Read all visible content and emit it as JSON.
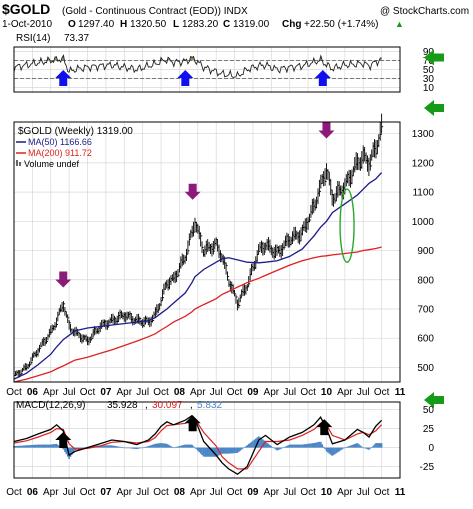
{
  "header": {
    "symbol": "$GOLD",
    "description": "(Gold - Continuous Contract (EOD)) INDX",
    "source": "@ StockCharts.com",
    "date": "1-Oct-2010",
    "open_label": "O",
    "open": "1297.40",
    "high_label": "H",
    "high": "1320.50",
    "low_label": "L",
    "low": "1283.20",
    "close_label": "C",
    "close": "1319.00",
    "chg_label": "Chg",
    "chg": "+22.50 (+1.74%)",
    "chg_arrow": "▲"
  },
  "rsi": {
    "label": "RSI(14)",
    "value": "73.37",
    "ticks": [
      "90",
      "70",
      "50",
      "30",
      "10"
    ],
    "tick_values": [
      90,
      70,
      50,
      30,
      10
    ],
    "range": [
      0,
      100
    ],
    "overbought": 70,
    "oversold": 30
  },
  "price": {
    "legend_title": "$GOLD (Weekly) 1319.00",
    "legend_ma50": "MA(50) 1166.66",
    "legend_ma200": "MA(200) 911.72",
    "legend_volume": "Volume undef",
    "ticks": [
      "1300",
      "1200",
      "1100",
      "1000",
      "900",
      "800",
      "700",
      "600",
      "500"
    ],
    "tick_values": [
      1300,
      1200,
      1100,
      1000,
      900,
      800,
      700,
      600,
      500
    ],
    "range": [
      450,
      1340
    ]
  },
  "macd": {
    "label": "MACD(12,26,9)",
    "macd_value": "35.928",
    "signal_value": "30.097",
    "hist_value": "5.832",
    "ticks": [
      "50",
      "25",
      "0",
      "-25"
    ],
    "tick_values": [
      50,
      25,
      0,
      -25
    ],
    "range": [
      -40,
      60
    ]
  },
  "x_axis": {
    "labels": [
      "Oct",
      "06",
      "Apr",
      "Jul",
      "Oct",
      "07",
      "Apr",
      "Jul",
      "Oct",
      "08",
      "Apr",
      "Jul",
      "Oct",
      "09",
      "Apr",
      "Jul",
      "Oct",
      "10",
      "Apr",
      "Jul",
      "Oct",
      "11"
    ],
    "label_years": [
      2005.75,
      2006.0,
      2006.25,
      2006.5,
      2006.75,
      2007.0,
      2007.25,
      2007.5,
      2007.75,
      2008.0,
      2008.25,
      2008.5,
      2008.75,
      2009.0,
      2009.25,
      2009.5,
      2009.75,
      2010.0,
      2010.25,
      2010.5,
      2010.75,
      2011.0
    ],
    "bold": [
      false,
      true,
      false,
      false,
      false,
      true,
      false,
      false,
      false,
      true,
      false,
      false,
      false,
      true,
      false,
      false,
      false,
      true,
      false,
      false,
      false,
      true
    ],
    "range": [
      2005.75,
      2011.0
    ]
  },
  "colors": {
    "price_bars": "#000000",
    "ma50": "#1c1c8a",
    "ma200": "#e02020",
    "rsi_line": "#222222",
    "rsi_fill": "#7aa05a",
    "macd_line": "#000000",
    "signal_line": "#e02020",
    "histogram": "#4a86c8",
    "grid": "#d8d8d8",
    "purple_arrow": "#8b1a7a",
    "blue_arrow": "#1010ee",
    "black_arrow": "#000000",
    "green_arrow": "#179a17",
    "green_ellipse": "#28a828"
  },
  "annotations": {
    "purple_arrows": [
      {
        "year": 2006.42,
        "price": 760
      },
      {
        "year": 2008.18,
        "price": 1060
      },
      {
        "year": 2010.0,
        "price": 1270
      }
    ],
    "blue_arrows": [
      {
        "year": 2006.42
      },
      {
        "year": 2008.08
      },
      {
        "year": 2009.95
      }
    ],
    "black_arrows": [
      {
        "year": 2006.42,
        "macd": 10
      },
      {
        "year": 2008.18,
        "macd": 32
      },
      {
        "year": 2009.97,
        "macd": 27
      }
    ],
    "green_arrows": [
      {
        "pane": "rsi",
        "value": 70
      },
      {
        "pane": "price",
        "value": 1340
      },
      {
        "pane": "macd",
        "value": 60
      }
    ],
    "ellipse": {
      "year": 2010.28,
      "price_top": 1110,
      "price_bottom": 860
    }
  },
  "chart_data": {
    "type": "line",
    "title": "$GOLD (Gold - Continuous Contract (EOD)) INDX",
    "xlabel": "",
    "ylabel": "",
    "ylim": [
      450,
      1340
    ],
    "grid": true,
    "legend_placement": "top-left",
    "x": [
      2005.75,
      2005.92,
      2006.08,
      2006.25,
      2006.33,
      2006.42,
      2006.5,
      2006.58,
      2006.75,
      2006.92,
      2007.08,
      2007.25,
      2007.42,
      2007.58,
      2007.67,
      2007.75,
      2007.83,
      2007.92,
      2008.08,
      2008.17,
      2008.21,
      2008.33,
      2008.5,
      2008.58,
      2008.67,
      2008.79,
      2008.92,
      2009.08,
      2009.17,
      2009.33,
      2009.5,
      2009.67,
      2009.83,
      2009.92,
      2010.0,
      2010.08,
      2010.25,
      2010.42,
      2010.5,
      2010.58,
      2010.67,
      2010.75
    ],
    "series": [
      {
        "name": "$GOLD (Weekly)",
        "values": [
          470,
          500,
          560,
          620,
          660,
          720,
          640,
          620,
          590,
          640,
          660,
          680,
          660,
          655,
          680,
          730,
          790,
          800,
          880,
          960,
          1000,
          900,
          920,
          880,
          800,
          720,
          780,
          900,
          920,
          890,
          940,
          960,
          1050,
          1120,
          1180,
          1080,
          1120,
          1200,
          1220,
          1200,
          1250,
          1319
        ]
      },
      {
        "name": "MA(50)",
        "values": [
          460,
          480,
          510,
          545,
          570,
          595,
          610,
          625,
          635,
          640,
          645,
          650,
          655,
          660,
          670,
          685,
          700,
          720,
          755,
          790,
          810,
          835,
          860,
          872,
          875,
          868,
          860,
          858,
          860,
          865,
          880,
          905,
          950,
          980,
          1000,
          1030,
          1060,
          1090,
          1110,
          1130,
          1145,
          1166.66
        ]
      },
      {
        "name": "MA(200)",
        "values": [
          450,
          460,
          472,
          485,
          495,
          505,
          515,
          525,
          535,
          548,
          560,
          575,
          590,
          605,
          615,
          628,
          640,
          655,
          675,
          690,
          700,
          715,
          735,
          750,
          760,
          775,
          790,
          805,
          815,
          832,
          850,
          865,
          875,
          880,
          882,
          885,
          890,
          895,
          900,
          903,
          907,
          911.72
        ]
      }
    ],
    "rsi_values": [
      55,
      60,
      65,
      70,
      72,
      74,
      45,
      50,
      55,
      58,
      60,
      55,
      50,
      58,
      62,
      68,
      72,
      66,
      68,
      75,
      72,
      55,
      45,
      40,
      38,
      35,
      50,
      58,
      60,
      50,
      55,
      58,
      66,
      72,
      60,
      52,
      60,
      62,
      64,
      58,
      66,
      73.37
    ],
    "macd_values": [
      8,
      12,
      18,
      24,
      30,
      22,
      -10,
      -5,
      0,
      5,
      10,
      8,
      4,
      10,
      18,
      28,
      34,
      30,
      36,
      42,
      38,
      8,
      -10,
      -20,
      -28,
      -35,
      -25,
      10,
      16,
      4,
      14,
      20,
      30,
      40,
      25,
      5,
      10,
      24,
      20,
      14,
      28,
      35.928
    ],
    "signal_values": [
      6,
      9,
      14,
      20,
      25,
      24,
      5,
      -2,
      -1,
      2,
      7,
      8,
      6,
      8,
      13,
      22,
      29,
      30,
      32,
      38,
      38,
      20,
      2,
      -12,
      -20,
      -28,
      -28,
      -5,
      8,
      8,
      10,
      16,
      24,
      32,
      30,
      16,
      10,
      18,
      20,
      17,
      22,
      30.097
    ]
  }
}
